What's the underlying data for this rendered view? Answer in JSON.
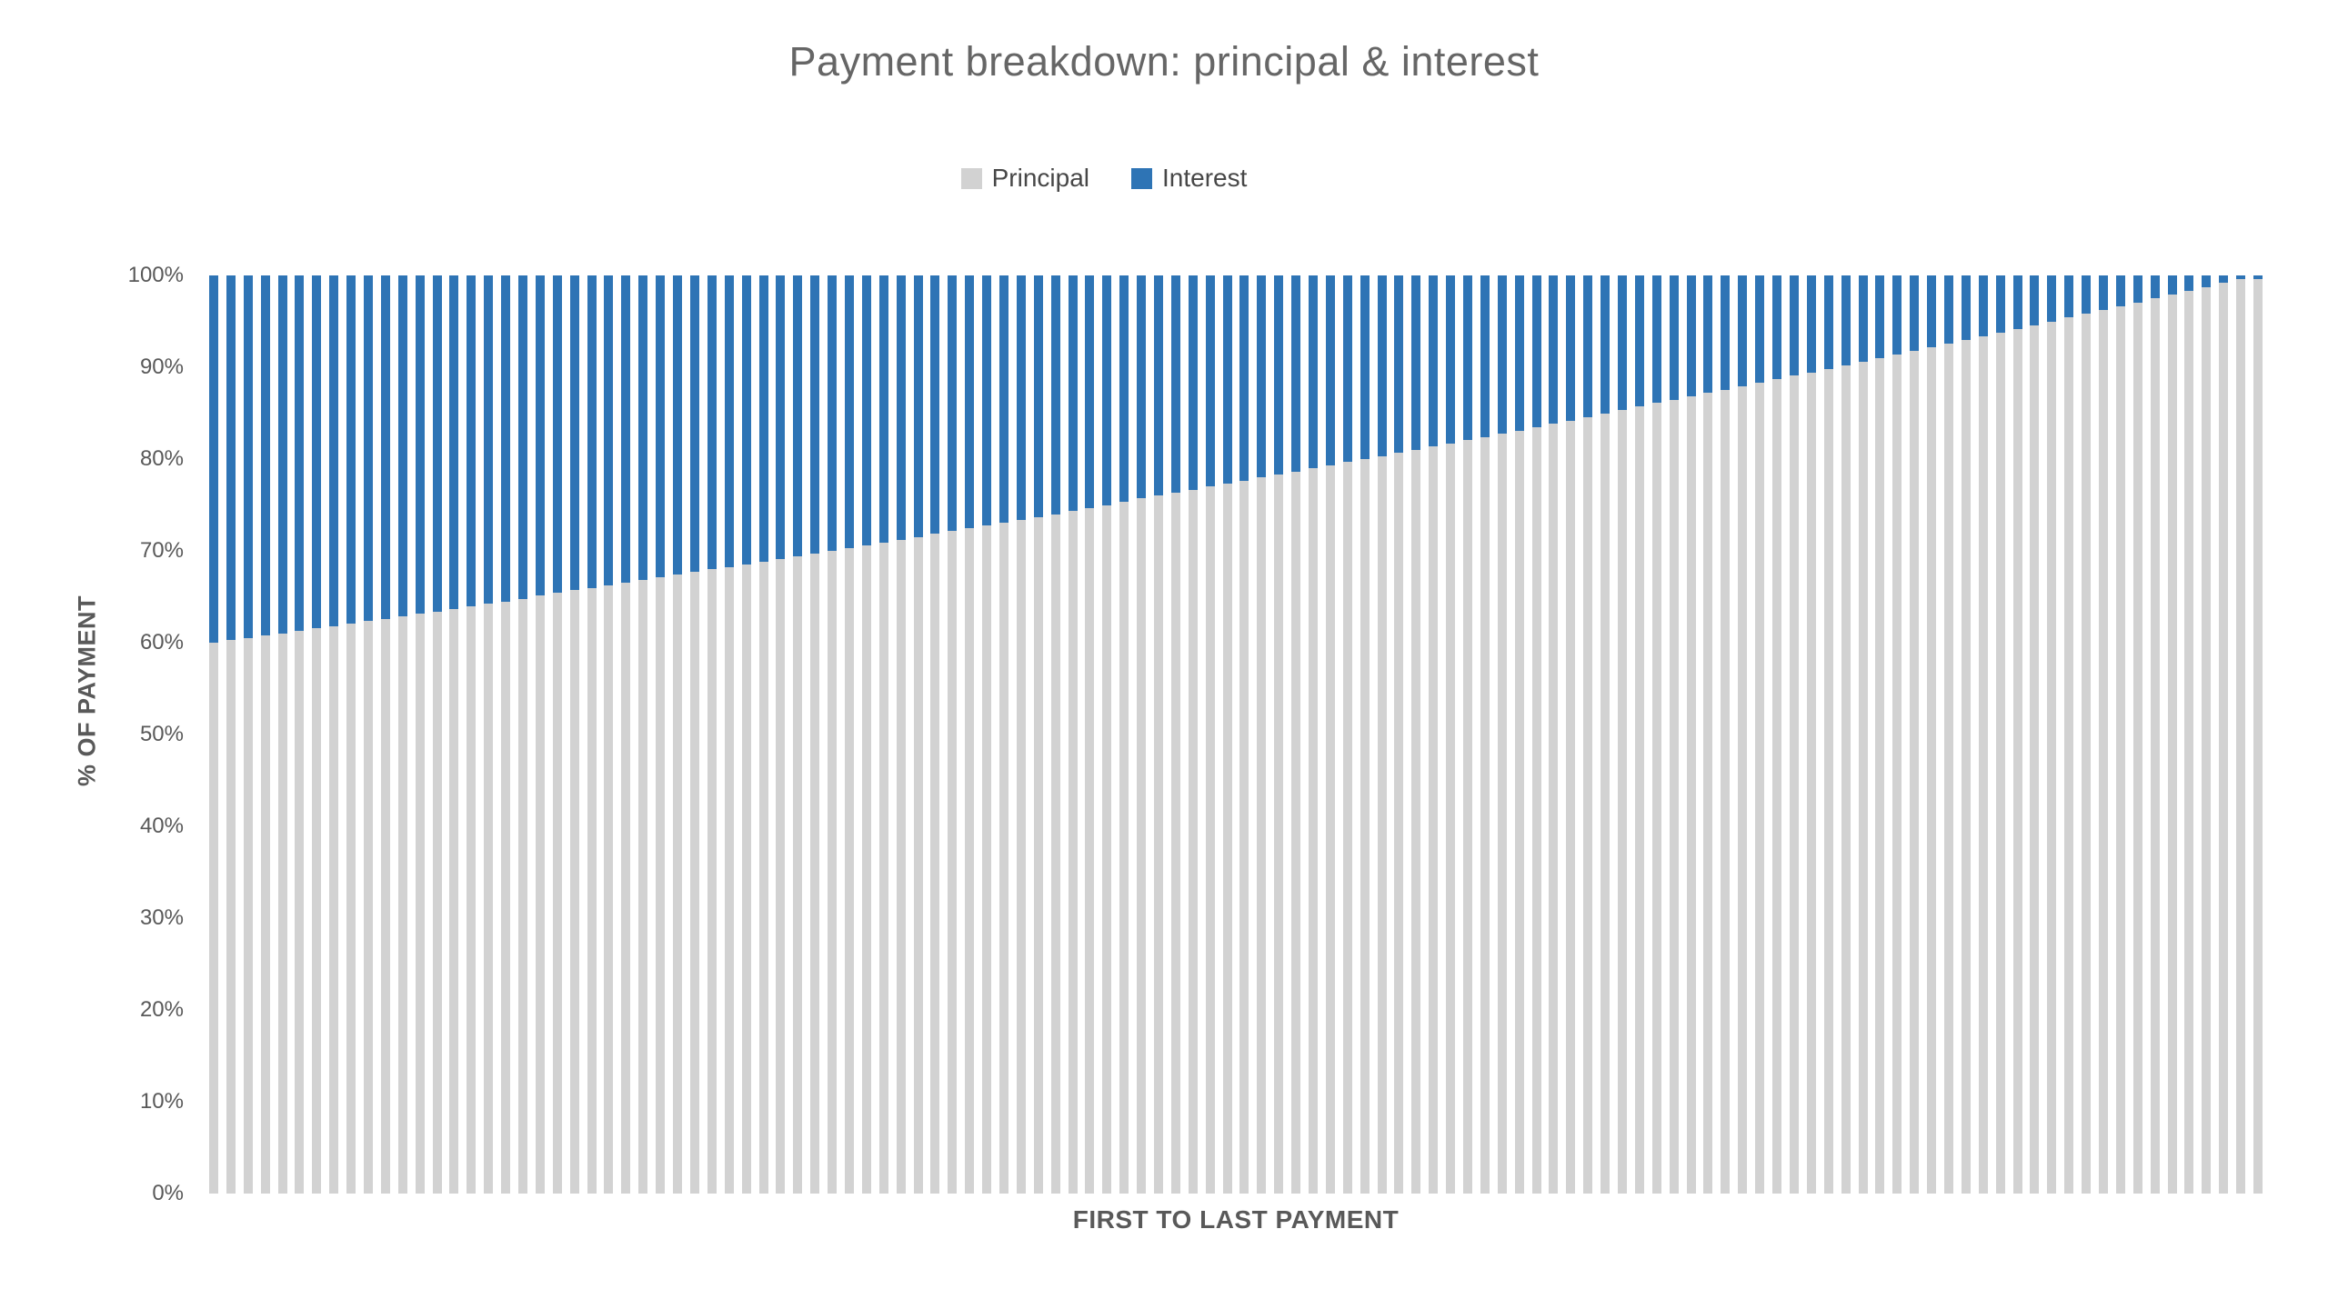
{
  "chart_data": {
    "type": "bar",
    "stacked": true,
    "stack_mode": "percent",
    "title": "Payment breakdown: principal & interest",
    "xlabel": "FIRST TO LAST PAYMENT",
    "ylabel": "% OF PAYMENT",
    "ylim": [
      0,
      100
    ],
    "y_ticks": [
      "0%",
      "10%",
      "20%",
      "30%",
      "40%",
      "50%",
      "60%",
      "70%",
      "80%",
      "90%",
      "100%"
    ],
    "x_description": "payment index 1 to 120, individual x tick labels not shown",
    "n_bars": 120,
    "grid": false,
    "legend": {
      "position": "top",
      "entries": [
        "Principal",
        "Interest"
      ]
    },
    "series": [
      {
        "name": "Principal",
        "color": "#d2d2d2",
        "values": [
          60.0,
          60.3,
          60.5,
          60.8,
          61.0,
          61.3,
          61.6,
          61.8,
          62.1,
          62.4,
          62.6,
          62.9,
          63.2,
          63.4,
          63.7,
          64.0,
          64.3,
          64.5,
          64.8,
          65.1,
          65.4,
          65.7,
          65.9,
          66.2,
          66.5,
          66.8,
          67.1,
          67.4,
          67.7,
          68.0,
          68.2,
          68.5,
          68.8,
          69.1,
          69.4,
          69.7,
          70.0,
          70.3,
          70.6,
          70.9,
          71.2,
          71.5,
          71.9,
          72.2,
          72.5,
          72.8,
          73.1,
          73.4,
          73.7,
          74.0,
          74.4,
          74.7,
          75.0,
          75.3,
          75.7,
          76.0,
          76.3,
          76.6,
          77.0,
          77.3,
          77.6,
          78.0,
          78.3,
          78.6,
          79.0,
          79.3,
          79.7,
          80.0,
          80.3,
          80.7,
          81.0,
          81.4,
          81.7,
          82.1,
          82.4,
          82.8,
          83.1,
          83.5,
          83.9,
          84.2,
          84.6,
          85.0,
          85.3,
          85.7,
          86.1,
          86.4,
          86.8,
          87.2,
          87.5,
          87.9,
          88.3,
          88.7,
          89.1,
          89.4,
          89.8,
          90.2,
          90.6,
          91.0,
          91.4,
          91.8,
          92.2,
          92.6,
          93.0,
          93.4,
          93.8,
          94.2,
          94.6,
          95.0,
          95.4,
          95.8,
          96.2,
          96.6,
          97.0,
          97.5,
          97.9,
          98.3,
          98.7,
          99.2,
          99.6,
          99.6
        ]
      },
      {
        "name": "Interest",
        "color": "#2e74b5",
        "values": [
          40.0,
          39.7,
          39.5,
          39.2,
          39.0,
          38.7,
          38.4,
          38.2,
          37.9,
          37.6,
          37.4,
          37.1,
          36.8,
          36.6,
          36.3,
          36.0,
          35.7,
          35.5,
          35.2,
          34.9,
          34.6,
          34.3,
          34.1,
          33.8,
          33.5,
          33.2,
          32.9,
          32.6,
          32.3,
          32.0,
          31.8,
          31.5,
          31.2,
          30.9,
          30.6,
          30.3,
          30.0,
          29.7,
          29.4,
          29.1,
          28.8,
          28.5,
          28.1,
          27.8,
          27.5,
          27.2,
          26.9,
          26.6,
          26.3,
          26.0,
          25.6,
          25.3,
          25.0,
          24.7,
          24.3,
          24.0,
          23.7,
          23.4,
          23.0,
          22.7,
          22.4,
          22.0,
          21.7,
          21.4,
          21.0,
          20.7,
          20.3,
          20.0,
          19.7,
          19.3,
          19.0,
          18.6,
          18.3,
          17.9,
          17.6,
          17.2,
          16.9,
          16.5,
          16.1,
          15.8,
          15.4,
          15.0,
          14.7,
          14.3,
          13.9,
          13.6,
          13.2,
          12.8,
          12.5,
          12.1,
          11.7,
          11.3,
          10.9,
          10.6,
          10.2,
          9.8,
          9.4,
          9.0,
          8.6,
          8.2,
          7.8,
          7.4,
          7.0,
          6.6,
          6.2,
          5.8,
          5.4,
          5.0,
          4.6,
          4.2,
          3.8,
          3.4,
          3.0,
          2.5,
          2.1,
          1.7,
          1.3,
          0.8,
          0.4,
          0.4
        ]
      }
    ],
    "colors": {
      "principal_bar": "#d2d2d2",
      "interest_bar": "#2e74b5",
      "title_text": "#666666",
      "axis_text": "#595959",
      "legend_text": "#474747"
    }
  }
}
